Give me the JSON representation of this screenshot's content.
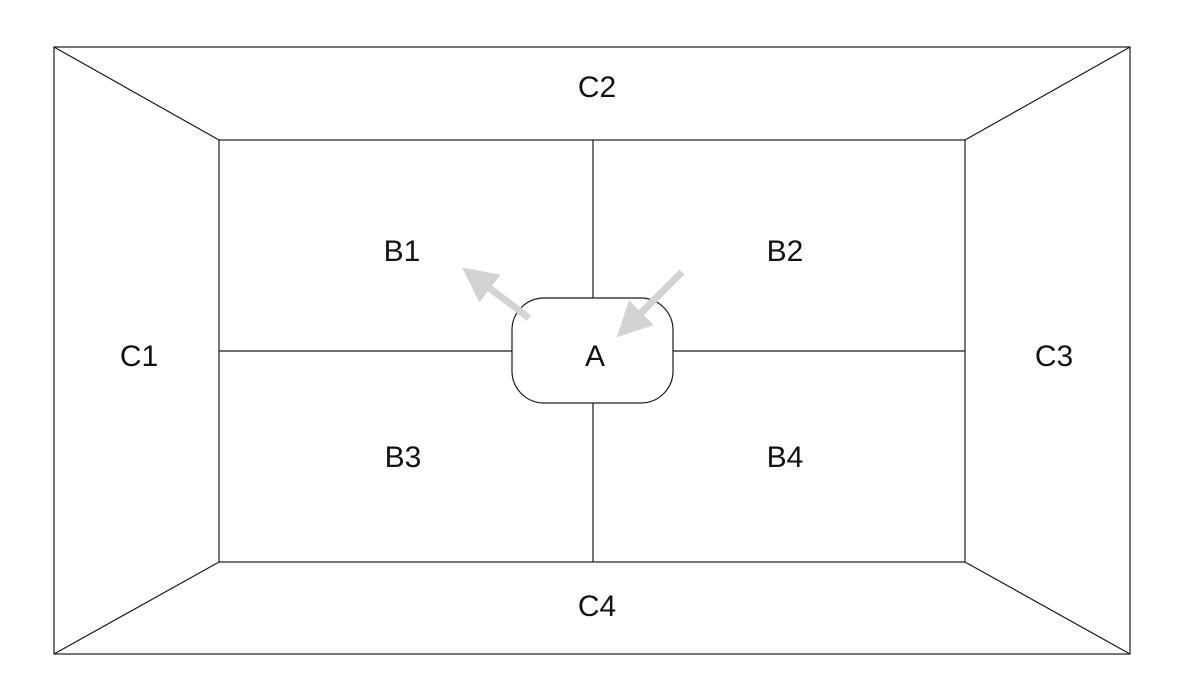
{
  "regions": {
    "outer": {
      "top": "C2",
      "left": "C1",
      "right": "C3",
      "bottom": "C4"
    },
    "inner": {
      "top_left": "B1",
      "top_right": "B2",
      "bottom_left": "B3",
      "bottom_right": "B4"
    },
    "center": "A"
  },
  "arrows": {
    "color": "#d3d3d3",
    "items": [
      {
        "name": "arrow-out-to-b1",
        "from": "A",
        "to": "B1"
      },
      {
        "name": "arrow-in-from-b2",
        "from": "B2",
        "to": "A"
      }
    ]
  },
  "colors": {
    "line": "#1a1a1a",
    "background": "#ffffff",
    "arrow": "#d3d3d3"
  }
}
